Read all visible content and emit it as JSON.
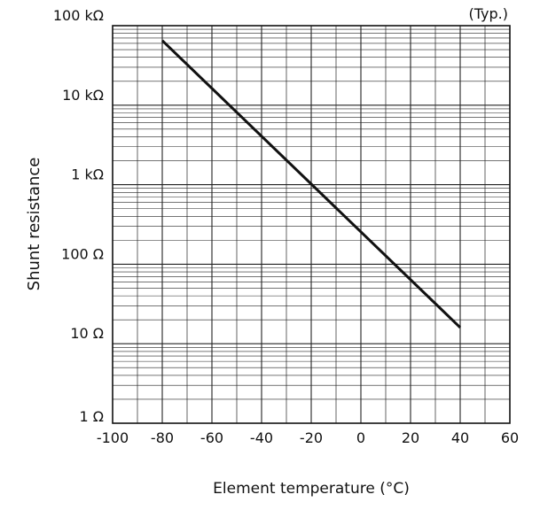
{
  "chart_data": {
    "type": "line",
    "note": "(Typ.)",
    "xlabel": "Element temperature (°C)",
    "ylabel": "Shunt resistance",
    "x_scale": "linear",
    "y_scale": "log",
    "xlim": [
      -100,
      60
    ],
    "ylim": [
      1,
      100000
    ],
    "x_ticks": [
      -100,
      -80,
      -60,
      -40,
      -20,
      0,
      20,
      40,
      60
    ],
    "x_tick_labels": [
      "-100",
      "-80",
      "-60",
      "-40",
      "-20",
      "0",
      "20",
      "40",
      "60"
    ],
    "y_ticks": [
      1,
      10,
      100,
      1000,
      10000,
      100000
    ],
    "y_tick_labels": [
      "1 Ω",
      "10 Ω",
      "100 Ω",
      "1 kΩ",
      "10 kΩ",
      "100 kΩ"
    ],
    "grid": true,
    "legend": "none",
    "series": [
      {
        "x": [
          -80,
          40
        ],
        "y": [
          65000,
          16
        ],
        "color": "#111111"
      }
    ]
  }
}
